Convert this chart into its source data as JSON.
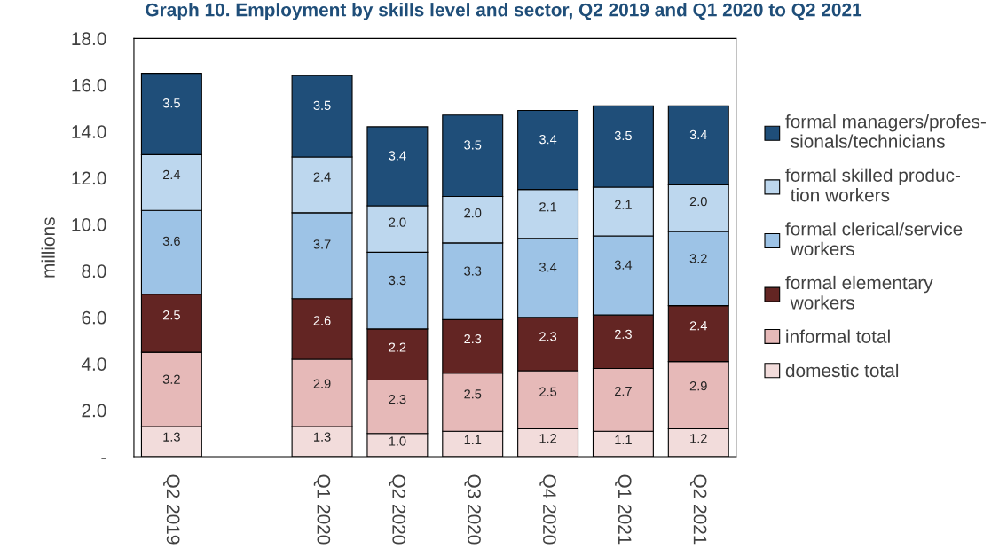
{
  "chart_data": {
    "type": "bar",
    "stacked": true,
    "title": "Graph 10. Employment by skills level and sector, Q2 2019 and Q1 2020 to Q2 2021",
    "ylabel": "millions",
    "categories": [
      "Q2 2019",
      null,
      "Q1 2020",
      "Q2 2020",
      "Q3 2020",
      "Q4 2020",
      "Q1 2021",
      "Q2 2021"
    ],
    "ylim": [
      0,
      18
    ],
    "yticks": [
      {
        "value": 0,
        "label": "-"
      },
      {
        "value": 2,
        "label": "2.0"
      },
      {
        "value": 4,
        "label": "4.0"
      },
      {
        "value": 6,
        "label": "6.0"
      },
      {
        "value": 8,
        "label": "8.0"
      },
      {
        "value": 10,
        "label": "10.0"
      },
      {
        "value": 12,
        "label": "12.0"
      },
      {
        "value": 14,
        "label": "14.0"
      },
      {
        "value": 16,
        "label": "16.0"
      },
      {
        "value": 18,
        "label": "18.0"
      }
    ],
    "series": [
      {
        "name": "domestic total",
        "color": "#f2dcdb",
        "values": [
          1.3,
          null,
          1.3,
          1.0,
          1.1,
          1.2,
          1.1,
          1.2
        ],
        "value_labels": [
          "1.3",
          null,
          "1.3",
          "1.0",
          "1.1",
          "1.2",
          "1.1",
          "1.2"
        ]
      },
      {
        "name": "informal total",
        "color": "#e6b9b8",
        "values": [
          3.2,
          null,
          2.9,
          2.3,
          2.5,
          2.5,
          2.7,
          2.9
        ],
        "value_labels": [
          "3.2",
          null,
          "2.9",
          "2.3",
          "2.5",
          "2.5",
          "2.7",
          "2.9"
        ]
      },
      {
        "name": "formal elementary\n workers",
        "color": "#632523",
        "values": [
          2.5,
          null,
          2.6,
          2.2,
          2.3,
          2.3,
          2.3,
          2.4
        ],
        "value_labels": [
          "2.5",
          null,
          "2.6",
          "2.2",
          "2.3",
          "2.3",
          "2.3",
          "2.4"
        ]
      },
      {
        "name": "formal clerical/service\n workers",
        "color": "#9dc3e6",
        "values": [
          3.6,
          null,
          3.7,
          3.3,
          3.3,
          3.4,
          3.4,
          3.2
        ],
        "value_labels": [
          "3.6",
          null,
          "3.7",
          "3.3",
          "3.3",
          "3.4",
          "3.4",
          "3.2"
        ]
      },
      {
        "name": "formal skilled produc-\n tion workers",
        "color": "#bdd7ee",
        "values": [
          2.4,
          null,
          2.4,
          2.0,
          2.0,
          2.1,
          2.1,
          2.0
        ],
        "value_labels": [
          "2.4",
          null,
          "2.4",
          "2.0",
          "2.0",
          "2.1",
          "2.1",
          "2.0"
        ]
      },
      {
        "name": "formal managers/profes-\n sionals/technicians",
        "color": "#1f4e79",
        "values": [
          3.5,
          null,
          3.5,
          3.4,
          3.5,
          3.4,
          3.5,
          3.4
        ],
        "value_labels": [
          "3.5",
          null,
          "3.5",
          "3.4",
          "3.5",
          "3.4",
          "3.5",
          "3.4"
        ]
      }
    ],
    "grid": false,
    "legend": "right"
  }
}
